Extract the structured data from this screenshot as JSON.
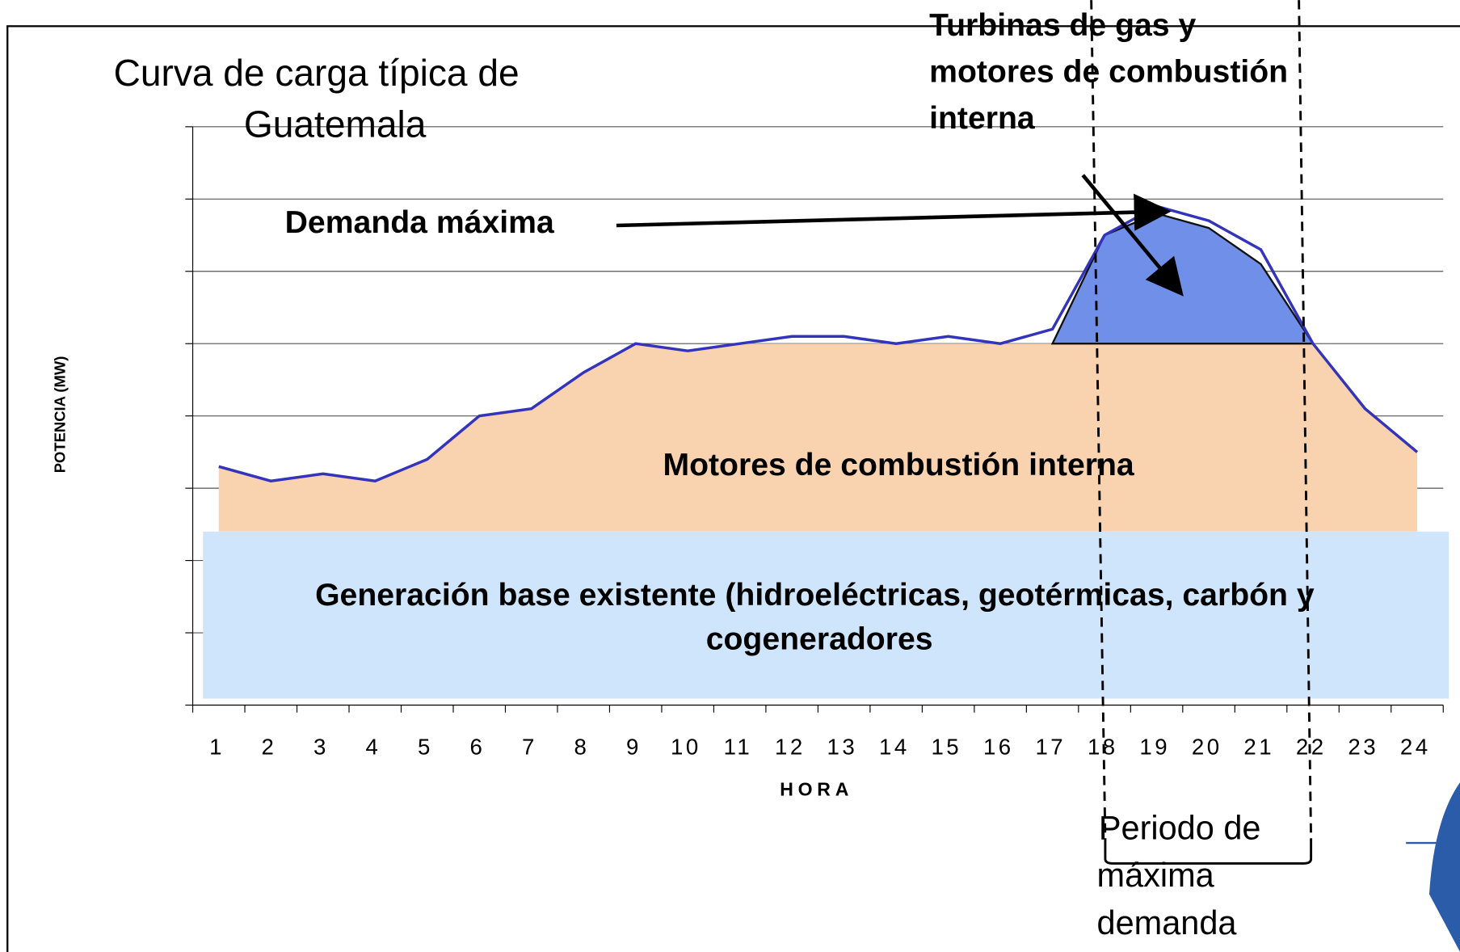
{
  "chart_data": {
    "type": "area",
    "title": [
      "Curva de carga típica de",
      "Guatemala"
    ],
    "y_label": "POTENCIA (MW)",
    "x_label": "HORA",
    "categories": [
      "1",
      "2",
      "3",
      "4",
      "5",
      "6",
      "7",
      "8",
      "9",
      "10",
      "11",
      "12",
      "13",
      "14",
      "15",
      "16",
      "17",
      "18",
      "19",
      "20",
      "21",
      "22",
      "23",
      "24"
    ],
    "ylim": [
      0,
      8
    ],
    "yticks": [
      0,
      1,
      2,
      3,
      4,
      5,
      6,
      7,
      8
    ],
    "grid": true,
    "series": [
      {
        "name": [
          "Generación base existente (hidroeléctricas, geotérmicas, carbón y",
          "cogeneradores"
        ],
        "color": "#cfe5fb",
        "values": [
          2.4,
          2.4,
          2.4,
          2.4,
          2.4,
          2.4,
          2.4,
          2.4,
          2.4,
          2.4,
          2.4,
          2.4,
          2.4,
          2.4,
          2.4,
          2.4,
          2.4,
          2.4,
          2.4,
          2.4,
          2.4,
          2.4,
          2.4,
          2.4
        ]
      },
      {
        "name": [
          "Motores de combustión interna"
        ],
        "color": "#f9d3b0",
        "values": [
          0.9,
          0.7,
          0.8,
          0.7,
          1.0,
          1.6,
          1.7,
          2.2,
          2.6,
          2.5,
          2.6,
          2.6,
          2.6,
          2.6,
          2.6,
          2.6,
          2.6,
          2.6,
          2.6,
          2.6,
          2.6,
          2.6,
          1.7,
          1.1
        ]
      },
      {
        "name": [
          "Turbinas de gas y",
          "motores de combustión",
          "interna"
        ],
        "color": "#6f8fe8",
        "values": [
          null,
          null,
          null,
          null,
          null,
          null,
          null,
          null,
          null,
          null,
          null,
          null,
          null,
          null,
          null,
          null,
          0,
          1.5,
          1.8,
          1.6,
          1.1,
          0,
          null,
          null
        ]
      },
      {
        "name": [
          "Demanda máxima"
        ],
        "color": "#3333bb",
        "line": true,
        "values": [
          3.3,
          3.1,
          3.2,
          3.1,
          3.4,
          4.0,
          4.1,
          4.6,
          5.0,
          4.9,
          5.0,
          5.1,
          5.1,
          5.0,
          5.1,
          5.0,
          5.2,
          6.5,
          6.9,
          6.7,
          6.3,
          5.0,
          4.1,
          3.5
        ]
      }
    ],
    "period_label": [
      "Periodo de",
      "máxima",
      "demanda"
    ]
  }
}
